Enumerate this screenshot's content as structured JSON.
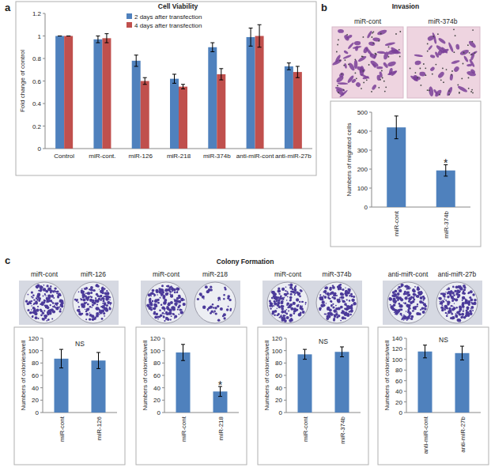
{
  "chart_data": [
    {
      "type": "bar",
      "panel": "a",
      "title": "Cell Viability",
      "categories": [
        "Control",
        "miR-cont.",
        "miR-126",
        "miR-218",
        "miR-374b",
        "anti-miR-cont",
        "anti-miR-27b"
      ],
      "series": [
        {
          "name": "2 days after transfection",
          "color": "#4f81bd",
          "values": [
            1,
            0.97,
            0.78,
            0.62,
            0.9,
            0.99,
            0.73
          ],
          "errors": [
            0,
            0.03,
            0.05,
            0.04,
            0.04,
            0.08,
            0.03
          ]
        },
        {
          "name": "4 days after transfection",
          "color": "#c0504d",
          "values": [
            1,
            0.98,
            0.6,
            0.55,
            0.66,
            1,
            0.68
          ],
          "errors": [
            0,
            0.04,
            0.03,
            0.02,
            0.05,
            0.1,
            0.05
          ]
        }
      ],
      "y_label": "Fold change of control",
      "ylim": [
        0,
        1.2
      ],
      "yticks": [
        0,
        0.2,
        0.4,
        0.6,
        0.8,
        1,
        1.2
      ],
      "grid": false,
      "legend": "top"
    },
    {
      "type": "bar",
      "panel": "b",
      "title": "Invasion",
      "image_labels": [
        "miR-cont",
        "miR-374b"
      ],
      "categories": [
        "miR-cont",
        "miR-374b"
      ],
      "values": [
        420,
        193
      ],
      "errors": [
        60,
        30
      ],
      "color": "#4f81bd",
      "y_label": "Numbers of migrated cells",
      "ylim": [
        0,
        500
      ],
      "yticks": [
        0,
        100,
        200,
        300,
        400,
        500
      ],
      "grid": false,
      "annotations": [
        {
          "text": "*",
          "category": "miR-374b"
        }
      ]
    },
    {
      "type": "bar",
      "image_labels": [
        "miR-cont",
        "miR-126"
      ],
      "categories": [
        "miR-cont",
        "miR-126"
      ],
      "values": [
        87,
        84
      ],
      "errors": [
        15,
        13
      ],
      "color": "#4f81bd",
      "y_label": "Numbers of colonies/well",
      "ylim": [
        0,
        120
      ],
      "yticks": [
        0,
        20,
        40,
        60,
        80,
        100,
        120
      ],
      "grid": false,
      "annotations": [
        {
          "text": "NS"
        }
      ]
    },
    {
      "type": "bar",
      "image_labels": [
        "miR-cont",
        "miR-218"
      ],
      "categories": [
        "miR-cont",
        "miR-218"
      ],
      "values": [
        97,
        34
      ],
      "errors": [
        13,
        8
      ],
      "color": "#4f81bd",
      "y_label": "Numbers of colonies/well",
      "ylim": [
        0,
        120
      ],
      "yticks": [
        0,
        20,
        40,
        60,
        80,
        100,
        120
      ],
      "grid": false,
      "annotations": [
        {
          "text": "*",
          "category": "miR-218"
        }
      ]
    },
    {
      "type": "bar",
      "image_labels": [
        "miR-cont",
        "miR-374b"
      ],
      "categories": [
        "miR-cont",
        "miR-374b"
      ],
      "values": [
        94,
        98
      ],
      "errors": [
        8,
        8
      ],
      "color": "#4f81bd",
      "y_label": "Numbers of colonies/well",
      "ylim": [
        0,
        120
      ],
      "yticks": [
        0,
        20,
        40,
        60,
        80,
        100,
        120
      ],
      "grid": false,
      "annotations": [
        {
          "text": "NS"
        }
      ]
    },
    {
      "type": "bar",
      "image_labels": [
        "anti-miR-cont",
        "anti-miR-27b"
      ],
      "categories": [
        "anti-miR-cont",
        "anti-miR-27b"
      ],
      "values": [
        115,
        112
      ],
      "errors": [
        12,
        13
      ],
      "color": "#4f81bd",
      "y_label": "Numbers of colonies/well",
      "ylim": [
        0,
        140
      ],
      "yticks": [
        0,
        20,
        40,
        60,
        80,
        100,
        120,
        140
      ],
      "grid": false,
      "annotations": [
        {
          "text": "NS"
        }
      ]
    }
  ],
  "panel_c": {
    "label": "c",
    "title": "Colony Formation"
  }
}
